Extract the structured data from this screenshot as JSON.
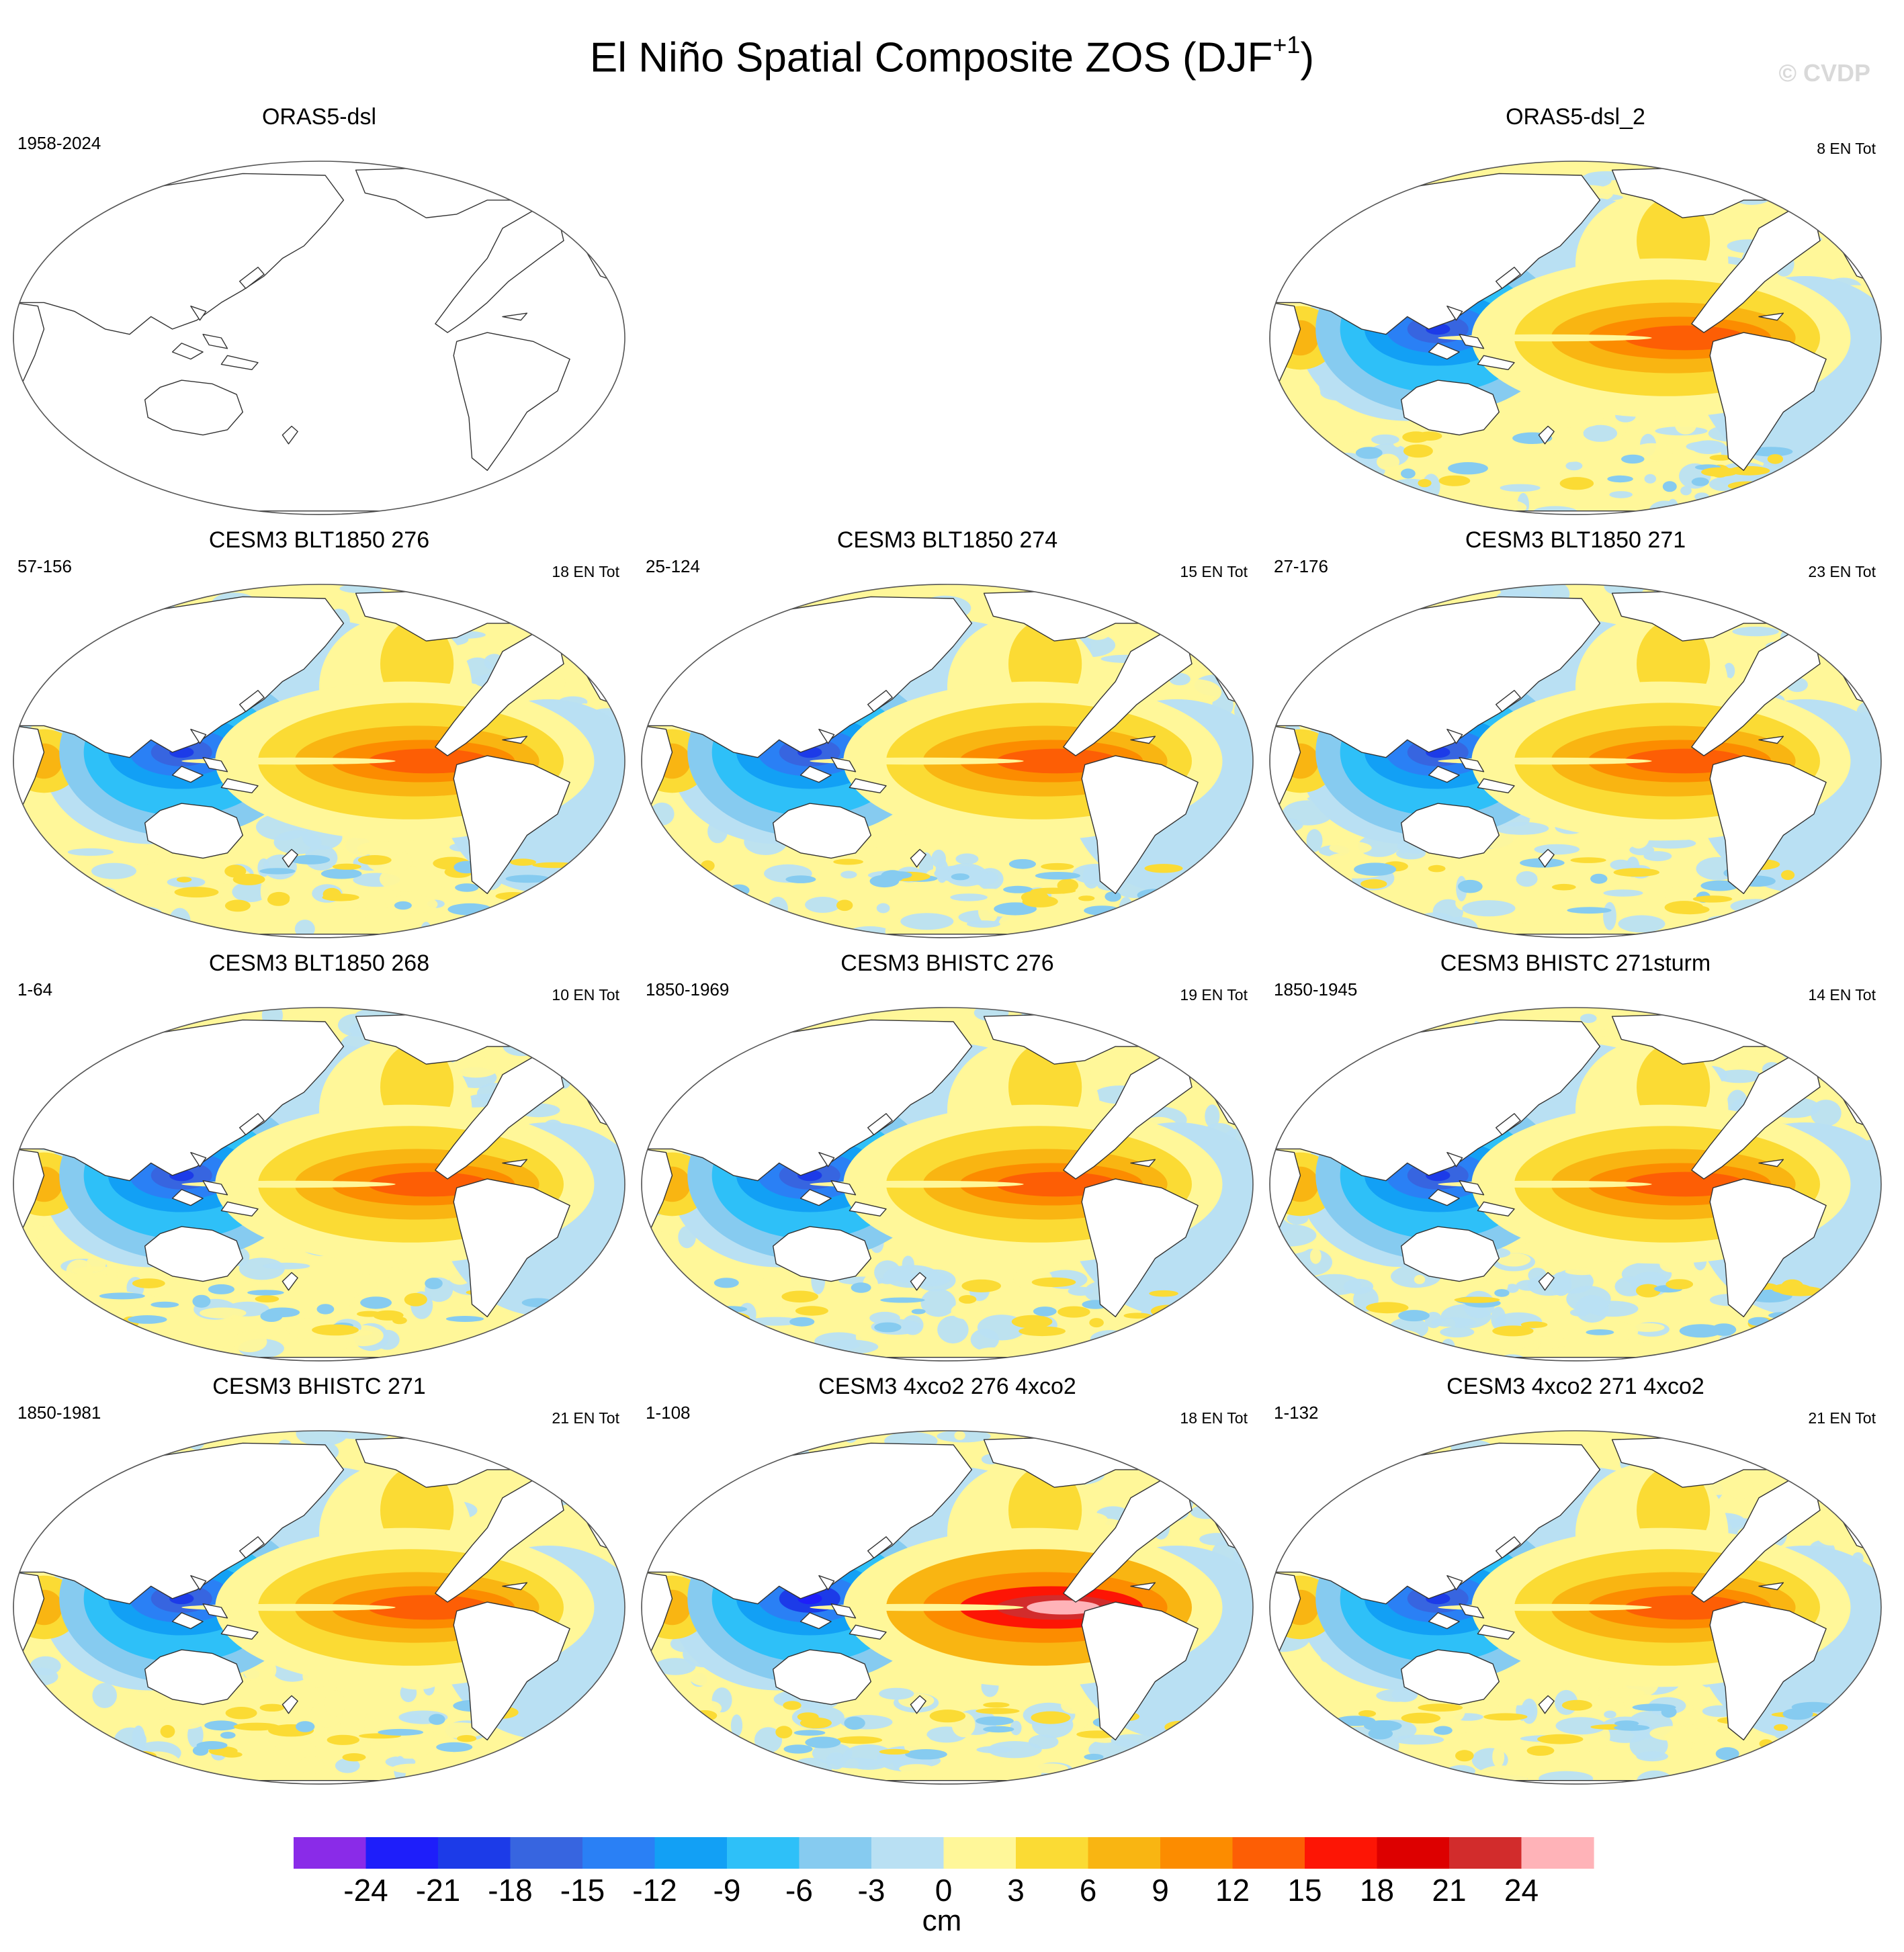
{
  "title": {
    "main": "El Niño Spatial Composite ZOS (DJF",
    "superscript": "+1",
    "close": ")"
  },
  "watermark": "© CVDP",
  "panels": [
    {
      "title": "ORAS5-dsl",
      "years": "1958-2024",
      "count": "",
      "has_data": false,
      "intensity": 0.0
    },
    {
      "title": "",
      "years": "",
      "count": "",
      "has_data": false,
      "blank": true,
      "intensity": 0.0
    },
    {
      "title": "ORAS5-dsl_2",
      "years": "",
      "count": "8 EN Tot",
      "has_data": true,
      "intensity": 0.85
    },
    {
      "title": "CESM3 BLT1850 276",
      "years": "57-156",
      "count": "18 EN Tot",
      "has_data": true,
      "intensity": 0.95
    },
    {
      "title": "CESM3 BLT1850 274",
      "years": "25-124",
      "count": "15 EN Tot",
      "has_data": true,
      "intensity": 0.95
    },
    {
      "title": "CESM3 BLT1850 271",
      "years": "27-176",
      "count": "23 EN Tot",
      "has_data": true,
      "intensity": 0.9
    },
    {
      "title": "CESM3 BLT1850 268",
      "years": "1-64",
      "count": "10 EN Tot",
      "has_data": true,
      "intensity": 0.9
    },
    {
      "title": "CESM3 BHISTC 276",
      "years": "1850-1969",
      "count": "19 EN Tot",
      "has_data": true,
      "intensity": 0.9
    },
    {
      "title": "CESM3 BHISTC 271sturm",
      "years": "1850-1945",
      "count": "14 EN Tot",
      "has_data": true,
      "intensity": 0.85
    },
    {
      "title": "CESM3 BHISTC 271",
      "years": "1850-1981",
      "count": "21 EN Tot",
      "has_data": true,
      "intensity": 0.85
    },
    {
      "title": "CESM3 4xco2 276 4xco2",
      "years": "1-108",
      "count": "18 EN Tot",
      "has_data": true,
      "intensity": 1.35
    },
    {
      "title": "CESM3 4xco2 271 4xco2",
      "years": "1-132",
      "count": "21 EN Tot",
      "has_data": true,
      "intensity": 0.95
    }
  ],
  "colorbar": {
    "unit": "cm",
    "levels": [
      "-24",
      "-21",
      "-18",
      "-15",
      "-12",
      "-9",
      "-6",
      "-3",
      "0",
      "3",
      "6",
      "9",
      "12",
      "15",
      "18",
      "21",
      "24"
    ],
    "colors": [
      "#8a2be8",
      "#1e1efa",
      "#1c3be8",
      "#3765e0",
      "#2a80f5",
      "#12a0f5",
      "#2ec0f8",
      "#86cbf0",
      "#b9e0f3",
      "#fff799",
      "#fbdb34",
      "#f9b512",
      "#fc8c00",
      "#fd5e05",
      "#fd1505",
      "#dd0000",
      "#d22c2c",
      "#ffb3b8"
    ]
  },
  "chart_data": {
    "type": "map",
    "title": "El Niño Spatial Composite ZOS (DJF+1)",
    "variable": "ZOS",
    "unit": "cm",
    "contour_levels": [
      -24,
      -21,
      -18,
      -15,
      -12,
      -9,
      -6,
      -3,
      0,
      3,
      6,
      9,
      12,
      15,
      18,
      21,
      24
    ],
    "panels": [
      {
        "name": "ORAS5-dsl",
        "years": "1958-2024",
        "events": null,
        "empty": true
      },
      {
        "name": "ORAS5-dsl_2",
        "events": 8,
        "east_pacific_max_cm": 12,
        "west_pacific_min_cm": -15
      },
      {
        "name": "CESM3 BLT1850 276",
        "years": "57-156",
        "events": 18,
        "east_pacific_max_cm": 12,
        "west_pacific_min_cm": -18
      },
      {
        "name": "CESM3 BLT1850 274",
        "years": "25-124",
        "events": 15,
        "east_pacific_max_cm": 12,
        "west_pacific_min_cm": -18
      },
      {
        "name": "CESM3 BLT1850 271",
        "years": "27-176",
        "events": 23,
        "east_pacific_max_cm": 12,
        "west_pacific_min_cm": -18
      },
      {
        "name": "CESM3 BLT1850 268",
        "years": "1-64",
        "events": 10,
        "east_pacific_max_cm": 12,
        "west_pacific_min_cm": -18
      },
      {
        "name": "CESM3 BHISTC 276",
        "years": "1850-1969",
        "events": 19,
        "east_pacific_max_cm": 12,
        "west_pacific_min_cm": -18
      },
      {
        "name": "CESM3 BHISTC 271sturm",
        "years": "1850-1945",
        "events": 14,
        "east_pacific_max_cm": 9,
        "west_pacific_min_cm": -18
      },
      {
        "name": "CESM3 BHISTC 271",
        "years": "1850-1981",
        "events": 21,
        "east_pacific_max_cm": 9,
        "west_pacific_min_cm": -18
      },
      {
        "name": "CESM3 4xco2 276 4xco2",
        "years": "1-108",
        "events": 18,
        "east_pacific_max_cm": 21,
        "west_pacific_min_cm": -21
      },
      {
        "name": "CESM3 4xco2 271 4xco2",
        "years": "1-132",
        "events": 21,
        "east_pacific_max_cm": 15,
        "west_pacific_min_cm": -18
      }
    ]
  }
}
